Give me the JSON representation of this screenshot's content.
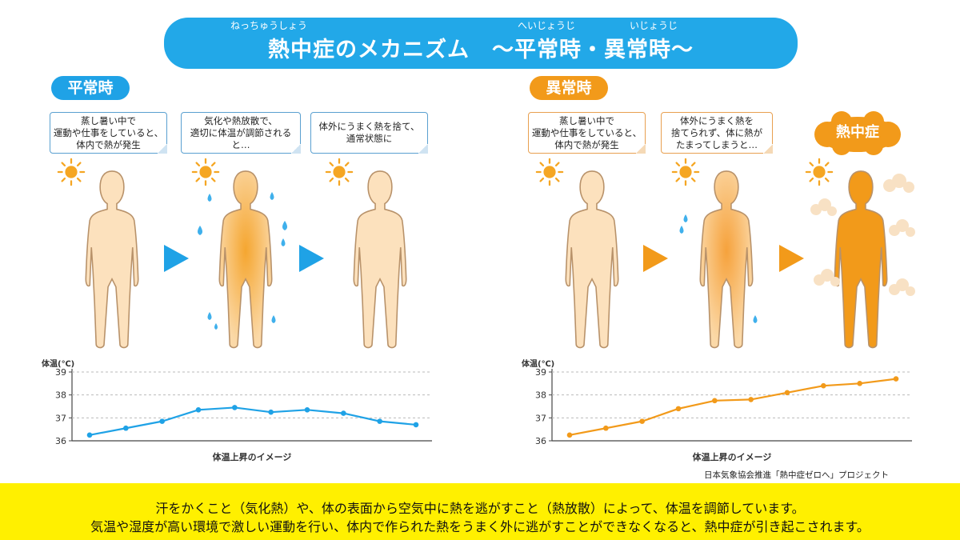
{
  "title": {
    "main": "熱中症のメカニズム　～平常時・異常時～",
    "ruby_heatstroke": "ねっちゅうしょう",
    "ruby_normal": "へいじょうじ",
    "ruby_abnormal": "いじょうじ"
  },
  "normal": {
    "label": "平常時",
    "color": "#1fa2e6",
    "bubbles": [
      "蒸し暑い中で\n運動や仕事をしていると、\n体内で熱が発生",
      "気化や熱放散で、\n適切に体温が調節されると…",
      "体外にうまく熱を捨て、\n通常状態に"
    ]
  },
  "abnormal": {
    "label": "異常時",
    "color": "#f29a1a",
    "bubbles": [
      "蒸し暑い中で\n運動や仕事をしていると、\n体内で熱が発生",
      "体外にうまく熱を\n捨てられず、体に熱が\nたまってしまうと…"
    ],
    "result_label": "熱中症"
  },
  "credit": "日本気象協会推進「熱中症ゼロへ」プロジェクト",
  "footer": {
    "line1": "汗をかくこと（気化熱）や、体の表面から空気中に熱を逃がすこと（熱放散）によって、体温を調節しています。",
    "line2": "気温や湿度が高い環境で激しい運動を行い、体内で作られた熱をうまく外に逃がすことができなくなると、熱中症が引き起こされます。"
  },
  "chart_data": [
    {
      "type": "line",
      "ylabel": "体温(℃)",
      "xlabel": "体温上昇のイメージ",
      "ylim": [
        36,
        39
      ],
      "yticks": [
        36,
        37,
        38,
        39
      ],
      "grid": true,
      "color": "#1fa2e6",
      "series": [
        {
          "values": [
            36.25,
            36.55,
            36.85,
            37.35,
            37.45,
            37.25,
            37.35,
            37.2,
            36.85,
            36.7
          ]
        }
      ]
    },
    {
      "type": "line",
      "ylabel": "体温(℃)",
      "xlabel": "体温上昇のイメージ",
      "ylim": [
        36,
        39
      ],
      "yticks": [
        36,
        37,
        38,
        39
      ],
      "grid": true,
      "color": "#f29a1a",
      "series": [
        {
          "values": [
            36.25,
            36.55,
            36.85,
            37.4,
            37.75,
            37.8,
            38.1,
            38.4,
            38.5,
            38.7
          ]
        }
      ]
    }
  ]
}
